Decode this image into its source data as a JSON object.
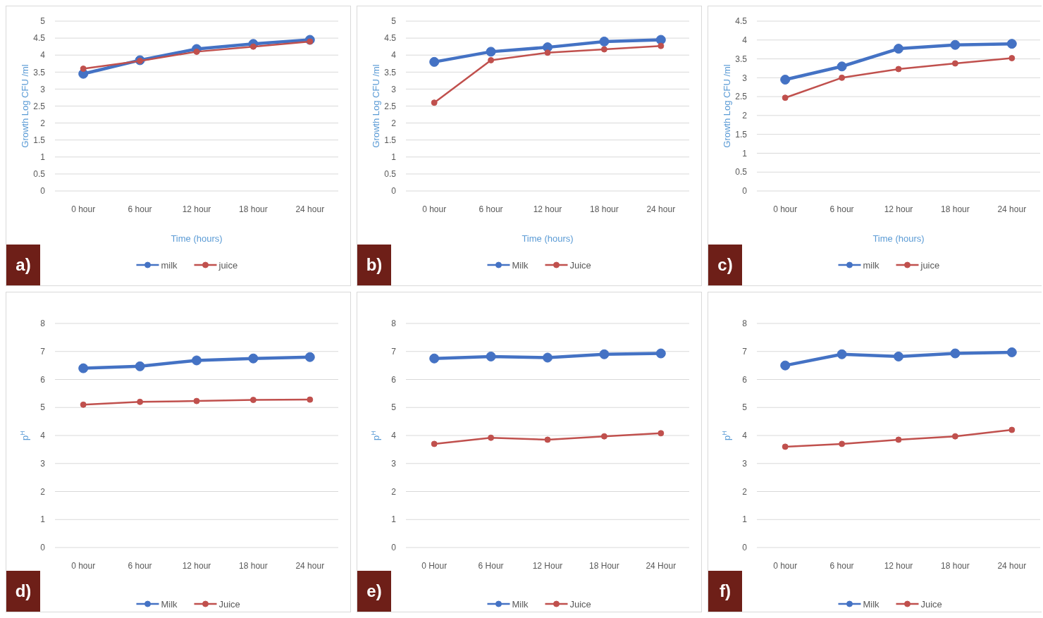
{
  "chart_data": [
    {
      "type": "line",
      "categories": [
        "0 hour",
        "6 hour",
        "12 hour",
        "18 hour",
        "24 hour"
      ],
      "ylabel": "Growth Log CFU /ml",
      "xlabel": "Time (hours)",
      "ylim": [
        0,
        5
      ],
      "yticks": [
        0,
        0.5,
        1,
        1.5,
        2,
        2.5,
        3,
        3.5,
        4,
        4.5,
        5
      ],
      "grid": "y",
      "legend": "bottom",
      "marker": "circle",
      "annotations": [
        "a)"
      ],
      "series": [
        {
          "name": "milk",
          "color": "#4472c4",
          "values": [
            3.45,
            3.85,
            4.18,
            4.33,
            4.45
          ]
        },
        {
          "name": "juice",
          "color": "#c0504d",
          "values": [
            3.6,
            3.83,
            4.1,
            4.25,
            4.4
          ]
        }
      ]
    },
    {
      "type": "line",
      "categories": [
        "0 hour",
        "6 hour",
        "12 hour",
        "18 hour",
        "24 hour"
      ],
      "ylabel": "Growth Log CFU /ml",
      "xlabel": "Time (hours)",
      "ylim": [
        0,
        5
      ],
      "yticks": [
        0,
        0.5,
        1,
        1.5,
        2,
        2.5,
        3,
        3.5,
        4,
        4.5,
        5
      ],
      "grid": "y",
      "legend": "bottom",
      "marker": "circle",
      "annotations": [
        "b)"
      ],
      "series": [
        {
          "name": "Milk",
          "color": "#4472c4",
          "values": [
            3.8,
            4.1,
            4.23,
            4.4,
            4.45
          ]
        },
        {
          "name": "Juice",
          "color": "#c0504d",
          "values": [
            2.6,
            3.85,
            4.07,
            4.17,
            4.27
          ]
        }
      ]
    },
    {
      "type": "line",
      "categories": [
        "0 hour",
        "6 hour",
        "12 hour",
        "18 hour",
        "24 hour"
      ],
      "ylabel": "Growth Log CFU /ml",
      "xlabel": "Time (hours)",
      "ylim": [
        0,
        4.5
      ],
      "yticks": [
        0,
        0.5,
        1,
        1.5,
        2,
        2.5,
        3,
        3.5,
        4,
        4.5
      ],
      "grid": "y",
      "legend": "bottom",
      "marker": "circle",
      "annotations": [
        "c)"
      ],
      "series": [
        {
          "name": "milk",
          "color": "#4472c4",
          "values": [
            2.95,
            3.3,
            3.77,
            3.87,
            3.9
          ]
        },
        {
          "name": "juice",
          "color": "#c0504d",
          "values": [
            2.47,
            3.0,
            3.23,
            3.38,
            3.52
          ]
        }
      ]
    },
    {
      "type": "line",
      "categories": [
        "0 hour",
        "6 hour",
        "12 hour",
        "18 hour",
        "24 hour"
      ],
      "ylabel": "p$^{H}$",
      "ylim": [
        0,
        8
      ],
      "yticks": [
        0,
        1,
        2,
        3,
        4,
        5,
        6,
        7,
        8
      ],
      "grid": "y",
      "legend": "bottom",
      "marker": "circle",
      "annotations": [
        "d)"
      ],
      "series": [
        {
          "name": "Milk",
          "color": "#4472c4",
          "values": [
            6.4,
            6.47,
            6.68,
            6.75,
            6.8
          ]
        },
        {
          "name": "Juice",
          "color": "#c0504d",
          "values": [
            5.1,
            5.2,
            5.23,
            5.27,
            5.28
          ]
        }
      ]
    },
    {
      "type": "line",
      "categories": [
        "0 Hour",
        "6 Hour",
        "12 Hour",
        "18 Hour",
        "24 Hour"
      ],
      "ylabel": "p$^{H}$",
      "ylim": [
        0,
        8
      ],
      "yticks": [
        0,
        1,
        2,
        3,
        4,
        5,
        6,
        7,
        8
      ],
      "grid": "y",
      "legend": "bottom",
      "marker": "circle",
      "annotations": [
        "e)"
      ],
      "series": [
        {
          "name": "Milk",
          "color": "#4472c4",
          "values": [
            6.75,
            6.82,
            6.78,
            6.9,
            6.93
          ]
        },
        {
          "name": "Juice",
          "color": "#c0504d",
          "values": [
            3.7,
            3.92,
            3.85,
            3.97,
            4.08
          ]
        }
      ]
    },
    {
      "type": "line",
      "categories": [
        "0 hour",
        "6 hour",
        "12 hour",
        "18 hour",
        "24 hour"
      ],
      "ylabel": "p$^{H}$",
      "ylim": [
        0,
        8
      ],
      "yticks": [
        0,
        1,
        2,
        3,
        4,
        5,
        6,
        7,
        8
      ],
      "grid": "y",
      "legend": "bottom",
      "marker": "circle",
      "annotations": [
        "f)"
      ],
      "series": [
        {
          "name": "Milk",
          "color": "#4472c4",
          "values": [
            6.5,
            6.9,
            6.82,
            6.93,
            6.97
          ]
        },
        {
          "name": "Juice",
          "color": "#c0504d",
          "values": [
            3.6,
            3.7,
            3.85,
            3.97,
            4.2
          ]
        }
      ]
    }
  ]
}
